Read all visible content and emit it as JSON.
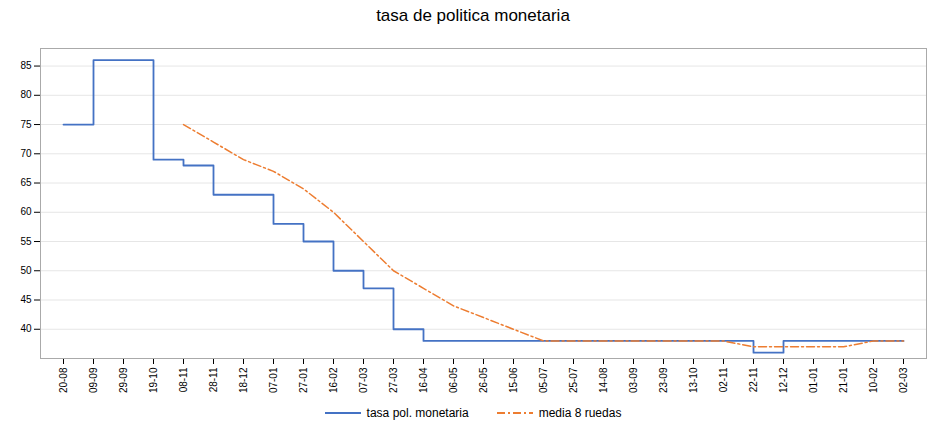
{
  "chart_data": {
    "type": "line",
    "title": "tasa de politica monetaria",
    "categories": [
      "20-08",
      "09-09",
      "29-09",
      "19-10",
      "08-11",
      "28-11",
      "18-12",
      "07-01",
      "27-01",
      "16-02",
      "07-03",
      "27-03",
      "16-04",
      "06-05",
      "26-05",
      "15-06",
      "05-07",
      "25-07",
      "14-08",
      "03-09",
      "23-09",
      "13-10",
      "02-11",
      "22-11",
      "12-12",
      "01-01",
      "21-01",
      "10-02",
      "02-03"
    ],
    "series": [
      {
        "name": "tasa pol. monetaria",
        "color": "#4472C4",
        "type": "step",
        "line_style": "solid",
        "values": [
          75,
          86,
          86,
          69,
          68,
          63,
          63,
          58,
          55,
          50,
          47,
          40,
          38,
          38,
          38,
          38,
          38,
          38,
          38,
          38,
          38,
          38,
          38,
          36,
          38,
          38,
          38,
          38,
          38
        ]
      },
      {
        "name": "media 8 ruedas",
        "color": "#ED7D31",
        "type": "line",
        "line_style": "dashdot",
        "values": [
          null,
          null,
          null,
          null,
          75,
          72,
          69,
          67,
          64,
          60,
          55,
          50,
          47,
          44,
          42,
          40,
          38,
          38,
          38,
          38,
          38,
          38,
          38,
          37,
          37,
          37,
          37,
          38,
          38
        ]
      }
    ],
    "ylim": [
      35,
      88
    ],
    "yticks": [
      40,
      45,
      50,
      55,
      60,
      65,
      70,
      75,
      80,
      85
    ],
    "grid": true,
    "legend": "bottom"
  }
}
